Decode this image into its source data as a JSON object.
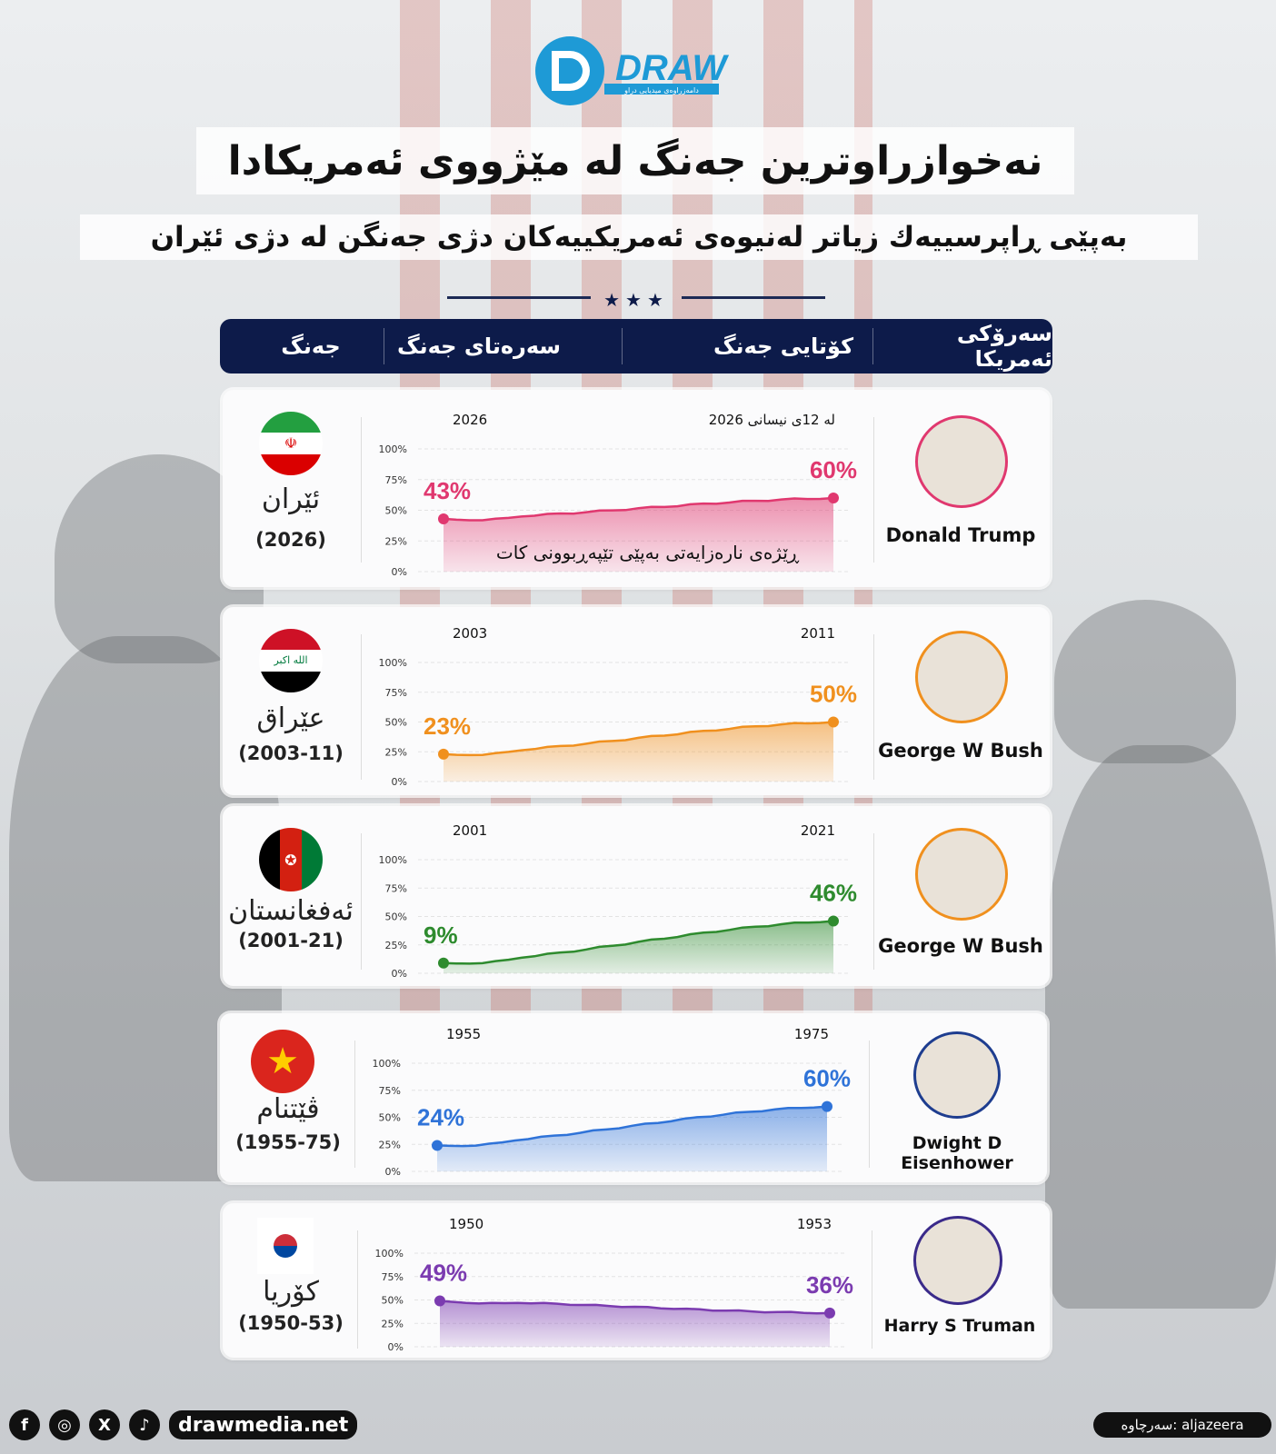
{
  "logo": {
    "text": "DRAW",
    "tagline": "دامەزراوەی میدیایی دراو"
  },
  "title": "نەخوازراوترین جەنگ لە مێژووی ئەمریکادا",
  "subtitle": "بەپێی ڕاپرسییەك زیاتر لەنیوەی ئەمریکییەکان دژی جەنگن لە دژی ئێران",
  "header": {
    "col_war": "جەنگ",
    "col_start": "سەرەتای جەنگ",
    "col_end": "کۆتایی جەنگ",
    "col_president": "سەرۆکی ئەمریکا"
  },
  "y_ticks": [
    "100%",
    "75%",
    "50%",
    "25%",
    "0%"
  ],
  "rows": [
    {
      "country": "ئێران",
      "years": "(2026)",
      "start_label": "2026",
      "end_label": "لە 12ی نیسانی 2026",
      "president": "Donald Trump",
      "start_pct": "43%",
      "end_pct": "60%",
      "note": "ڕێژەی نارەزایەتی بەپێی تێپەڕبوونی کات",
      "flag": "iran-flag",
      "color": "#e0386f"
    },
    {
      "country": "عێراق",
      "years": "(2003-11)",
      "start_label": "2003",
      "end_label": "2011",
      "president": "George W Bush",
      "start_pct": "23%",
      "end_pct": "50%",
      "flag": "iraq-flag",
      "color": "#f0901e"
    },
    {
      "country": "ئەفغانستان",
      "years": "(2001-21)",
      "start_label": "2001",
      "end_label": "2021",
      "president": "George W Bush",
      "start_pct": "9%",
      "end_pct": "46%",
      "flag": "afghanistan-flag",
      "color": "#2e8b2e"
    },
    {
      "country": "ڤێتنام",
      "years": "(1955-75)",
      "start_label": "1955",
      "end_label": "1975",
      "president": "Dwight D Eisenhower",
      "start_pct": "24%",
      "end_pct": "60%",
      "flag": "vietnam-flag",
      "color": "#2f73d8"
    },
    {
      "country": "کۆریا",
      "years": "(1950-53)",
      "start_label": "1950",
      "end_label": "1953",
      "president": "Harry S Truman",
      "start_pct": "49%",
      "end_pct": "36%",
      "flag": "korea-flag",
      "color": "#7b3bb0"
    }
  ],
  "chart_data": [
    {
      "type": "area",
      "title": "ئێران",
      "x": [
        "2026",
        "لە 12ی نیسانی 2026"
      ],
      "series": [
        {
          "values": [
            43,
            60
          ]
        }
      ],
      "ylim": [
        0,
        100
      ]
    },
    {
      "type": "area",
      "title": "عێراق",
      "x": [
        "2003",
        "2011"
      ],
      "series": [
        {
          "values": [
            23,
            50
          ]
        }
      ],
      "ylim": [
        0,
        100
      ]
    },
    {
      "type": "area",
      "title": "ئەفغانستان",
      "x": [
        "2001",
        "2021"
      ],
      "series": [
        {
          "values": [
            9,
            46
          ]
        }
      ],
      "ylim": [
        0,
        100
      ]
    },
    {
      "type": "area",
      "title": "ڤێتنام",
      "x": [
        "1955",
        "1975"
      ],
      "series": [
        {
          "values": [
            24,
            60
          ]
        }
      ],
      "ylim": [
        0,
        100
      ]
    },
    {
      "type": "area",
      "title": "کۆریا",
      "x": [
        "1950",
        "1953"
      ],
      "series": [
        {
          "values": [
            49,
            36
          ]
        }
      ],
      "ylim": [
        0,
        100
      ]
    }
  ],
  "footer": {
    "site": "drawmedia.net",
    "source": "سەرچاوە: aljazeera",
    "social": [
      "f",
      "◎",
      "X",
      "♪"
    ]
  }
}
